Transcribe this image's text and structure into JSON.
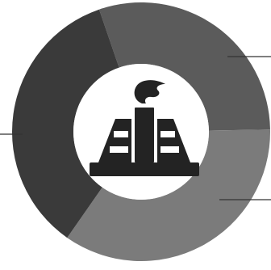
{
  "colors": {
    "background": "#ffffff",
    "center_fill": "#ffffff",
    "icon": "#232323",
    "leader_line": "#333333"
  },
  "diagram": {
    "type": "donut",
    "center_icon": "oil-refinery-flame-icon",
    "segments": [
      {
        "id": "segment-top-right",
        "share": 0.3,
        "color": "#5b5b5b",
        "has_leader_line": true
      },
      {
        "id": "segment-bottom",
        "share": 0.35,
        "color": "#7b7b7b",
        "has_leader_line": true
      },
      {
        "id": "segment-left",
        "share": 0.35,
        "color": "#3a3a3a",
        "has_leader_line": true
      }
    ]
  }
}
